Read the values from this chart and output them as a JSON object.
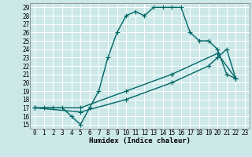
{
  "title": "",
  "xlabel": "Humidex (Indice chaleur)",
  "bg_color": "#cce8e8",
  "grid_color": "#ffffff",
  "line_color": "#006666",
  "xlim": [
    -0.5,
    23.5
  ],
  "ylim": [
    14.5,
    29.5
  ],
  "xticks": [
    0,
    1,
    2,
    3,
    4,
    5,
    6,
    7,
    8,
    9,
    10,
    11,
    12,
    13,
    14,
    15,
    16,
    17,
    18,
    19,
    20,
    21,
    22,
    23
  ],
  "yticks": [
    15,
    16,
    17,
    18,
    19,
    20,
    21,
    22,
    23,
    24,
    25,
    26,
    27,
    28,
    29
  ],
  "line1_x": [
    0,
    1,
    2,
    3,
    4,
    5,
    6,
    7,
    8,
    9,
    10,
    11,
    12,
    13,
    14,
    15,
    16,
    17,
    18,
    19,
    20,
    21,
    22
  ],
  "line1_y": [
    17,
    17,
    17,
    17,
    16,
    15,
    17,
    19,
    23,
    26,
    28,
    28.5,
    28,
    29,
    29,
    29,
    29,
    26,
    25,
    25,
    24,
    21,
    20.5
  ],
  "line2_x": [
    0,
    5,
    10,
    15,
    20,
    22
  ],
  "line2_y": [
    17,
    17,
    19,
    21,
    23.5,
    20.5
  ],
  "line3_x": [
    0,
    5,
    10,
    15,
    19,
    20,
    21,
    22
  ],
  "line3_y": [
    17,
    16.5,
    18,
    20,
    22,
    23,
    24,
    20.5
  ],
  "marker": "+",
  "markersize": 4,
  "linewidth": 1.0,
  "tick_fontsize": 5.5,
  "xlabel_fontsize": 6.5
}
